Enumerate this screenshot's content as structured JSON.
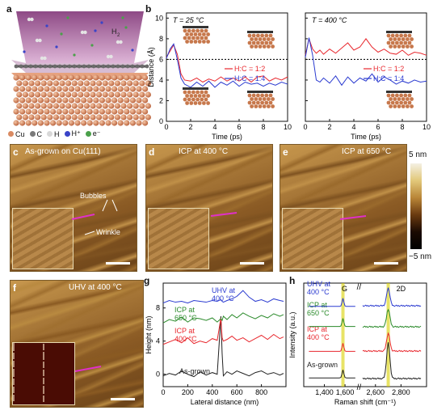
{
  "panel_a": {
    "letter": "a",
    "h2_label": "H",
    "h2_sub": "2",
    "legend": [
      {
        "label": "Cu",
        "color": "#d98a62"
      },
      {
        "label": "C",
        "color": "#7a7a7a"
      },
      {
        "label": "H",
        "color": "#d8d8d8"
      },
      {
        "label": "H⁺",
        "color": "#3a44c8"
      },
      {
        "label": "e⁻",
        "color": "#4aa04a"
      }
    ]
  },
  "panel_b": {
    "letter": "b",
    "ylabel": "Distance (Å)",
    "xlabel": "Time (ps)",
    "left_title": "T = 25 °C",
    "right_title": "T = 400 °C",
    "legend": [
      "H:C = 1:2",
      "H:C = 1:4"
    ],
    "yticks": [
      "0",
      "2",
      "4",
      "6",
      "8",
      "10"
    ],
    "xticks": [
      "0",
      "2",
      "4",
      "6",
      "8",
      "10"
    ],
    "colors": {
      "hc12": "#e8282e",
      "hc14": "#2a3ad0"
    }
  },
  "chart_data": [
    {
      "type": "line",
      "title": "T = 25 °C",
      "xlabel": "Time (ps)",
      "ylabel": "Distance (Å)",
      "xlim": [
        0,
        10
      ],
      "ylim": [
        0,
        10.5
      ],
      "threshold": 6,
      "series": [
        {
          "name": "H:C = 1:2",
          "x": [
            0,
            0.3,
            0.6,
            0.9,
            1.2,
            1.5,
            2,
            2.5,
            3,
            3.5,
            4,
            4.5,
            5,
            5.5,
            6,
            6.5,
            7,
            7.5,
            8,
            8.5,
            9,
            9.5,
            10
          ],
          "y": [
            6.2,
            6.8,
            7.4,
            6.5,
            4.6,
            4.0,
            3.9,
            4.2,
            3.8,
            4.1,
            3.9,
            4.3,
            3.9,
            4.2,
            3.9,
            4.3,
            3.8,
            4.3,
            4.4,
            3.9,
            4.2,
            4.0,
            4.3
          ]
        },
        {
          "name": "H:C = 1:4",
          "x": [
            0,
            0.3,
            0.6,
            0.9,
            1.2,
            1.5,
            2,
            2.5,
            3,
            3.5,
            4,
            4.5,
            5,
            5.5,
            6,
            6.5,
            7,
            7.5,
            8,
            8.5,
            9,
            9.5,
            10
          ],
          "y": [
            6.1,
            7.0,
            7.5,
            6.0,
            4.2,
            3.6,
            3.3,
            3.8,
            3.4,
            3.9,
            3.3,
            3.8,
            3.5,
            3.9,
            3.4,
            3.8,
            3.6,
            3.7,
            3.4,
            3.7,
            3.5,
            3.8,
            3.6
          ]
        }
      ]
    },
    {
      "type": "line",
      "title": "T = 400 °C",
      "xlabel": "Time (ps)",
      "xlim": [
        0,
        10
      ],
      "ylim": [
        0,
        10.5
      ],
      "threshold": 6,
      "series": [
        {
          "name": "H:C = 1:2",
          "x": [
            0,
            0.3,
            0.6,
            0.9,
            1.2,
            1.5,
            2,
            2.5,
            3,
            3.5,
            4,
            4.5,
            5,
            5.5,
            6,
            6.5,
            7,
            7.5,
            8,
            8.5,
            9,
            9.5,
            10
          ],
          "y": [
            6.4,
            8.0,
            7.0,
            6.6,
            6.9,
            6.5,
            7.0,
            6.6,
            7.1,
            7.6,
            6.9,
            7.2,
            8.0,
            7.2,
            6.7,
            7.0,
            6.6,
            6.5,
            6.9,
            6.4,
            6.7,
            6.6,
            6.4
          ]
        },
        {
          "name": "H:C = 1:4",
          "x": [
            0,
            0.3,
            0.6,
            0.9,
            1.2,
            1.5,
            2,
            2.5,
            3,
            3.5,
            4,
            4.5,
            5,
            5.5,
            6,
            6.5,
            7,
            7.5,
            8,
            8.5,
            9,
            9.5,
            10
          ],
          "y": [
            6.2,
            8.1,
            6.4,
            4.0,
            3.8,
            4.2,
            3.7,
            4.4,
            3.5,
            4.3,
            3.7,
            4.2,
            3.9,
            4.6,
            3.8,
            4.3,
            4.0,
            3.6,
            3.9,
            3.7,
            4.0,
            3.8,
            3.9
          ]
        }
      ]
    },
    {
      "type": "line",
      "title": "",
      "xlabel": "Lateral distance (nm)",
      "ylabel": "Height (nm)",
      "xlim": [
        0,
        1000
      ],
      "ylim": [
        -1.5,
        11
      ],
      "series": [
        {
          "name": "As-grown",
          "label_lines": [
            "As-grown"
          ],
          "color": "#222222",
          "x": [
            0,
            50,
            100,
            150,
            200,
            250,
            300,
            350,
            400,
            440,
            470,
            480,
            490,
            520,
            560,
            600,
            650,
            700,
            750,
            800,
            850,
            900,
            950,
            980
          ],
          "y": [
            -0.2,
            0.1,
            -0.1,
            0.4,
            0.0,
            -0.3,
            0.3,
            -0.1,
            0.2,
            0.0,
            7.0,
            2.5,
            -0.2,
            0.3,
            0.0,
            0.4,
            0.1,
            -0.2,
            0.2,
            0.4,
            0.0,
            0.2,
            -0.1,
            0.1
          ]
        },
        {
          "name": "ICP at 400 °C",
          "label_lines": [
            "ICP at",
            "400 °C"
          ],
          "color": "#e8282e",
          "x": [
            0,
            50,
            100,
            150,
            200,
            250,
            300,
            350,
            400,
            440,
            470,
            480,
            490,
            520,
            560,
            600,
            650,
            700,
            750,
            800,
            850,
            900,
            950,
            980
          ],
          "y": [
            3.6,
            3.9,
            4.2,
            3.8,
            4.4,
            3.7,
            4.0,
            3.8,
            4.3,
            4.1,
            6.8,
            4.4,
            4.0,
            4.2,
            4.6,
            4.1,
            4.4,
            3.9,
            4.3,
            4.7,
            4.2,
            4.8,
            4.3,
            4.5
          ]
        },
        {
          "name": "ICP at 650 °C",
          "label_lines": [
            "ICP at",
            "650 °C"
          ],
          "color": "#2a8a2a",
          "x": [
            0,
            50,
            100,
            150,
            200,
            250,
            300,
            350,
            400,
            440,
            470,
            480,
            490,
            520,
            560,
            600,
            650,
            700,
            750,
            800,
            850,
            900,
            950,
            980
          ],
          "y": [
            6.2,
            6.6,
            6.4,
            6.9,
            6.3,
            6.8,
            6.7,
            6.5,
            6.8,
            6.3,
            6.7,
            6.5,
            7.0,
            6.6,
            7.2,
            6.8,
            7.4,
            7.0,
            6.7,
            7.1,
            6.8,
            7.3,
            7.0,
            7.2
          ]
        },
        {
          "name": "UHV at 400 °C",
          "label_lines": [
            "UHV at",
            "400 °C"
          ],
          "color": "#2a3ad0",
          "x": [
            0,
            50,
            100,
            150,
            200,
            250,
            300,
            350,
            400,
            440,
            470,
            480,
            490,
            520,
            560,
            600,
            650,
            700,
            750,
            800,
            850,
            900,
            950,
            980
          ],
          "y": [
            8.6,
            8.9,
            8.7,
            8.8,
            8.6,
            8.9,
            8.8,
            8.7,
            8.9,
            8.8,
            9.0,
            8.8,
            8.7,
            8.9,
            9.1,
            9.4,
            10.1,
            9.3,
            8.8,
            9.0,
            8.7,
            9.1,
            8.9,
            8.8
          ]
        }
      ]
    },
    {
      "type": "line",
      "title": "",
      "xlabel": "Raman shift (cm⁻¹)",
      "ylabel": "Intensity (a.u.)",
      "xlim": [
        1200,
        3000
      ],
      "peaks": {
        "G": 1580,
        "2D": 2700
      },
      "series": [
        {
          "name": "As-grown",
          "label_lines": [
            "As-grown"
          ],
          "color": "#222222"
        },
        {
          "name": "ICP at 400 °C",
          "label_lines": [
            "ICP at",
            "400 °C"
          ],
          "color": "#e8282e"
        },
        {
          "name": "ICP at 650 °C",
          "label_lines": [
            "ICP at",
            "650 °C"
          ],
          "color": "#2a8a2a"
        },
        {
          "name": "UHV at 400 °C",
          "label_lines": [
            "UHV at",
            "400 °C"
          ],
          "color": "#2a3ad0"
        }
      ]
    }
  ],
  "panel_g": {
    "letter": "g",
    "xlabel": "Lateral distance (nm)",
    "ylabel": "Height (nm)",
    "yticks": [
      "0",
      "4",
      "8"
    ],
    "xticks": [
      "0",
      "200",
      "400",
      "600",
      "800"
    ]
  },
  "panel_h": {
    "letter": "h",
    "xlabel": "Raman shift (cm⁻¹)",
    "ylabel": "Intensity (a.u.)",
    "xticks": [
      "1,400",
      "1,600",
      "2,600",
      "2,800"
    ],
    "peak_g": "G",
    "peak_2d": "2D",
    "break_mark": "//"
  },
  "afm_panels": [
    {
      "letter": "c",
      "caption": "As-grown on Cu(111)",
      "annotations": [
        "Bubbles",
        "Wrinkle"
      ]
    },
    {
      "letter": "d",
      "caption": "ICP at 400 °C"
    },
    {
      "letter": "e",
      "caption": "ICP at 650 °C"
    },
    {
      "letter": "f",
      "caption": "UHV at 400 °C"
    }
  ],
  "colorbar": {
    "top": "5 nm",
    "bottom": "−5 nm"
  }
}
